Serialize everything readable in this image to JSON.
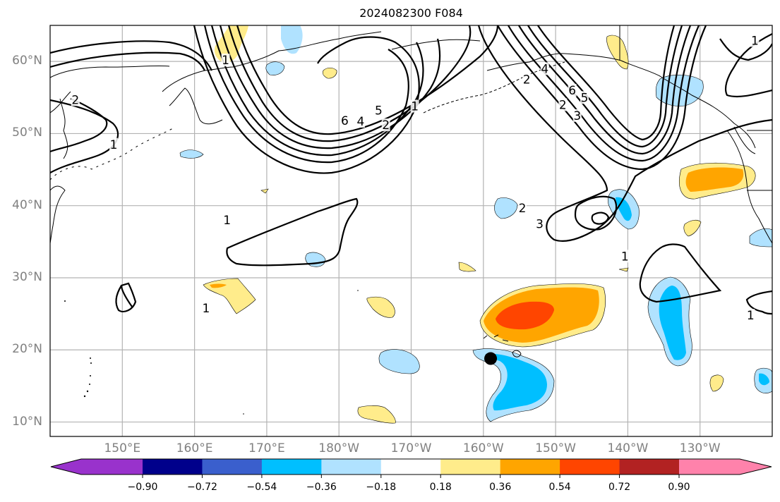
{
  "title": "2024082300 F084",
  "map": {
    "projection": "PlateCarree",
    "extent": {
      "lon_min": 140,
      "lon_max": 240,
      "lat_min": 8,
      "lat_max": 65
    },
    "lat_ticks": [
      {
        "value": 60,
        "label": "60°N"
      },
      {
        "value": 50,
        "label": "50°N"
      },
      {
        "value": 40,
        "label": "40°N"
      },
      {
        "value": 30,
        "label": "30°N"
      },
      {
        "value": 20,
        "label": "20°N"
      },
      {
        "value": 10,
        "label": "10°N"
      }
    ],
    "lon_ticks": [
      {
        "value": 150,
        "label": "150°E"
      },
      {
        "value": 160,
        "label": "160°E"
      },
      {
        "value": 170,
        "label": "170°E"
      },
      {
        "value": 180,
        "label": "180°W"
      },
      {
        "value": 190,
        "label": "170°W"
      },
      {
        "value": 200,
        "label": "160°W"
      },
      {
        "value": 210,
        "label": "150°W"
      },
      {
        "value": 220,
        "label": "140°W"
      },
      {
        "value": 230,
        "label": "130°W"
      }
    ],
    "marker": {
      "name": "location-dot",
      "lon": 201,
      "lat": 18.8,
      "color": "#000000"
    },
    "contour_labels": [
      {
        "text": "2",
        "lon": 143.5,
        "lat": 54.7
      },
      {
        "text": "1",
        "lon": 148.8,
        "lat": 48.5
      },
      {
        "text": "1",
        "lon": 164.3,
        "lat": 60.2
      },
      {
        "text": "6",
        "lon": 180.8,
        "lat": 51.8
      },
      {
        "text": "4",
        "lon": 183.0,
        "lat": 51.7
      },
      {
        "text": "5",
        "lon": 185.5,
        "lat": 53.2
      },
      {
        "text": "2",
        "lon": 186.5,
        "lat": 51.2
      },
      {
        "text": "1",
        "lon": 190.5,
        "lat": 53.8
      },
      {
        "text": "2",
        "lon": 206.0,
        "lat": 57.5
      },
      {
        "text": "4",
        "lon": 208.5,
        "lat": 59.0
      },
      {
        "text": "6",
        "lon": 212.3,
        "lat": 56.0
      },
      {
        "text": "5",
        "lon": 214.0,
        "lat": 55.0
      },
      {
        "text": "2",
        "lon": 211.0,
        "lat": 54.0
      },
      {
        "text": "3",
        "lon": 213.0,
        "lat": 52.5
      },
      {
        "text": "1",
        "lon": 237.6,
        "lat": 62.9
      },
      {
        "text": "2",
        "lon": 205.4,
        "lat": 39.7
      },
      {
        "text": "3",
        "lon": 207.8,
        "lat": 37.5
      },
      {
        "text": "1",
        "lon": 164.5,
        "lat": 38.0
      },
      {
        "text": "1",
        "lon": 219.6,
        "lat": 33.0
      },
      {
        "text": "1",
        "lon": 237.0,
        "lat": 24.8
      },
      {
        "text": "1",
        "lon": 161.6,
        "lat": 25.8
      }
    ]
  },
  "colorbar": {
    "extend": "both",
    "boundaries": [
      -0.9,
      -0.72,
      -0.54,
      -0.36,
      -0.18,
      0.18,
      0.36,
      0.54,
      0.72,
      0.9
    ],
    "tick_labels": [
      "−0.90",
      "−0.72",
      "−0.54",
      "−0.36",
      "−0.18",
      "0.18",
      "0.36",
      "0.54",
      "0.72",
      "0.90"
    ],
    "colors": [
      "#9932cc",
      "#00008b",
      "#3a5fcd",
      "#00bfff",
      "#b0e2ff",
      "#ffffff",
      "#ffec8b",
      "#ffa500",
      "#ff4500",
      "#b22222",
      "#ff82ab"
    ]
  },
  "chart_data": {
    "type": "heatmap",
    "title": "2024082300 F084",
    "xlabel": "",
    "ylabel": "",
    "x_range": [
      140,
      240
    ],
    "y_range": [
      8,
      65
    ],
    "legend": "bottom",
    "grid": true,
    "filled_anomaly_regions": [
      {
        "name": "anomaly-hawaii-north",
        "level": 0.54,
        "peak": 0.6,
        "center_lon": 207,
        "center_lat": 24.5
      },
      {
        "name": "anomaly-hawaii-south",
        "level": -0.36,
        "peak": -0.5,
        "center_lon": 206,
        "center_lat": 16
      },
      {
        "name": "anomaly-east-central",
        "level": -0.36,
        "peak": -0.5,
        "center_lon": 226,
        "center_lat": 24
      },
      {
        "name": "anomaly-west-coast",
        "level": 0.36,
        "peak": 0.45,
        "center_lon": 233,
        "center_lat": 44
      },
      {
        "name": "anomaly-gulf-alaska",
        "level": -0.18,
        "peak": -0.3,
        "center_lon": 228,
        "center_lat": 57
      },
      {
        "name": "anomaly-30n-west",
        "level": 0.18,
        "peak": 0.4,
        "center_lon": 164,
        "center_lat": 28.5
      },
      {
        "name": "anomaly-40n-mid",
        "level": -0.36,
        "peak": -0.45,
        "center_lon": 210.5,
        "center_lat": 40
      }
    ],
    "contour_levels": [
      1,
      2,
      3,
      4,
      5,
      6
    ]
  }
}
